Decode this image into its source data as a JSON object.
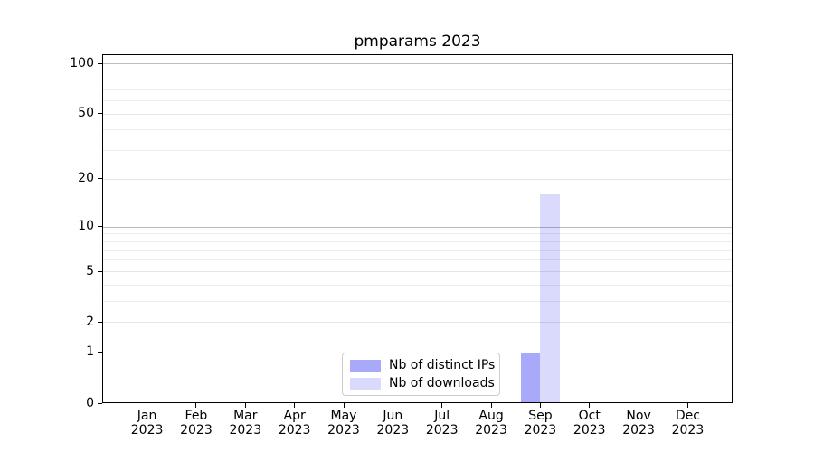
{
  "chart_data": {
    "type": "bar",
    "title": "pmparams 2023",
    "categories": [
      "Jan 2023",
      "Feb 2023",
      "Mar 2023",
      "Apr 2023",
      "May 2023",
      "Jun 2023",
      "Jul 2023",
      "Aug 2023",
      "Sep 2023",
      "Oct 2023",
      "Nov 2023",
      "Dec 2023"
    ],
    "x_tick_line1": [
      "Jan",
      "Feb",
      "Mar",
      "Apr",
      "May",
      "Jun",
      "Jul",
      "Aug",
      "Sep",
      "Oct",
      "Nov",
      "Dec"
    ],
    "x_tick_line2": "2023",
    "series": [
      {
        "name": "Nb of distinct IPs",
        "color": "#0a0af0",
        "alpha": 0.35,
        "apparent_color": "#aaaaf8",
        "values": [
          0,
          0,
          0,
          0,
          0,
          0,
          0,
          0,
          1,
          0,
          0,
          0
        ]
      },
      {
        "name": "Nb of downloads",
        "color": "#0a0af0",
        "alpha": 0.15,
        "apparent_color": "#dcdcfa",
        "values": [
          0,
          0,
          0,
          0,
          0,
          0,
          0,
          0,
          16,
          0,
          0,
          0
        ]
      }
    ],
    "y_axis": {
      "scale": "log1p",
      "tick_values": [
        0,
        1,
        2,
        5,
        10,
        20,
        50,
        100
      ],
      "tick_labels": [
        "0",
        "1",
        "2",
        "5",
        "10",
        "20",
        "50",
        "100"
      ],
      "ylim": [
        0,
        113
      ],
      "grid": true
    },
    "legend": {
      "position": "lower center",
      "labels": [
        "Nb of distinct IPs",
        "Nb of downloads"
      ]
    }
  }
}
